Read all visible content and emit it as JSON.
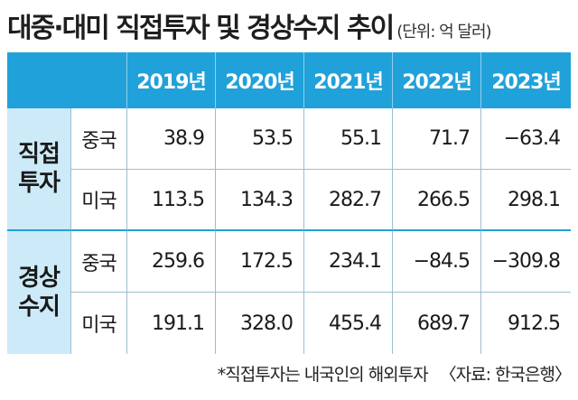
{
  "title": "대중·대미 직접투자 및 경상수지 추이",
  "unit": "(단위: 억 달러)",
  "footnote": "*직접투자는 내국인의 해외투자",
  "source": "〈자료: 한국은행〉",
  "chart_data": {
    "type": "table",
    "columns": [
      "2019년",
      "2020년",
      "2021년",
      "2022년",
      "2023년"
    ],
    "groups": [
      {
        "name_lines": [
          "직접",
          "투자"
        ],
        "rows": [
          {
            "label": "중국",
            "values": [
              "38.9",
              "53.5",
              "55.1",
              "71.7",
              "−63.4"
            ]
          },
          {
            "label": "미국",
            "values": [
              "113.5",
              "134.3",
              "282.7",
              "266.5",
              "298.1"
            ]
          }
        ]
      },
      {
        "name_lines": [
          "경상",
          "수지"
        ],
        "rows": [
          {
            "label": "중국",
            "values": [
              "259.6",
              "172.5",
              "234.1",
              "−84.5",
              "−309.8"
            ]
          },
          {
            "label": "미국",
            "values": [
              "191.1",
              "328.0",
              "455.4",
              "689.7",
              "912.5"
            ]
          }
        ]
      }
    ]
  }
}
